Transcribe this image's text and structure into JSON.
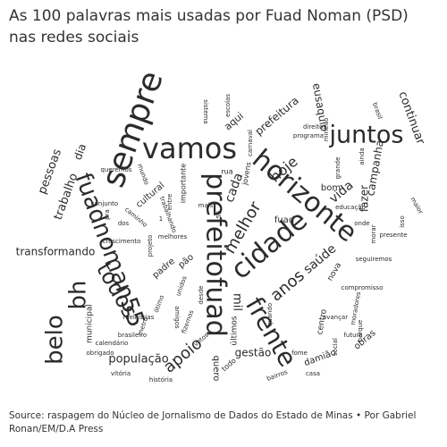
{
  "title": "As 100 palavras mais usadas por Fuad Noman (PSD) nas redes sociais",
  "source": "Source: raspagem do Núcleo de Jornalismo de Dados do Estado de Minas • Por Gabriel Ronan/EM/D.A Press",
  "colors": {
    "text": "#2b2b2b",
    "background": "#ffffff"
  },
  "words": [
    "vamos",
    "sempre",
    "juntos",
    "prefeitofuad",
    "horizonte",
    "fuadnoman55",
    "cidade",
    "belo",
    "bh",
    "todos",
    "frente",
    "continuar",
    "hoje",
    "anos",
    "saúde",
    "melhor",
    "vida",
    "campanha",
    "fazer",
    "pessoas",
    "trabalho",
    "transformando",
    "apoio",
    "população",
    "gestão",
    "prefeitura",
    "eusaquio",
    "aqui",
    "dia",
    "cultural",
    "importante",
    "cada",
    "fuad",
    "bom",
    "nova",
    "mil",
    "centro",
    "municipal",
    "padre",
    "pão",
    "quero",
    "todo",
    "obras",
    "damião",
    "últimos",
    "seguiremos",
    "compromisso",
    "conjunto",
    "caminho",
    "trabalhando",
    "rua",
    "jovens",
    "brasil",
    "mineiro",
    "ainda",
    "grande",
    "morar",
    "presente",
    "moradores",
    "futuro",
    "avançar",
    "crescimento",
    "melhores",
    "carnaval",
    "sistema",
    "escolas",
    "direitos",
    "programa",
    "parque",
    "social",
    "maior",
    "isso",
    "mundo",
    "queremos",
    "entre",
    "projeto",
    "unidos",
    "desde",
    "fizemos",
    "ótimo",
    "metrô",
    "calendário",
    "obrigado",
    "brasileiro",
    "melhorias",
    "história",
    "vitória",
    "amigos",
    "votos",
    "bairros",
    "fome",
    "casa",
    "quando",
    "educação",
    "onde",
    "mais",
    "55",
    "1",
    "dos",
    "pra"
  ]
}
